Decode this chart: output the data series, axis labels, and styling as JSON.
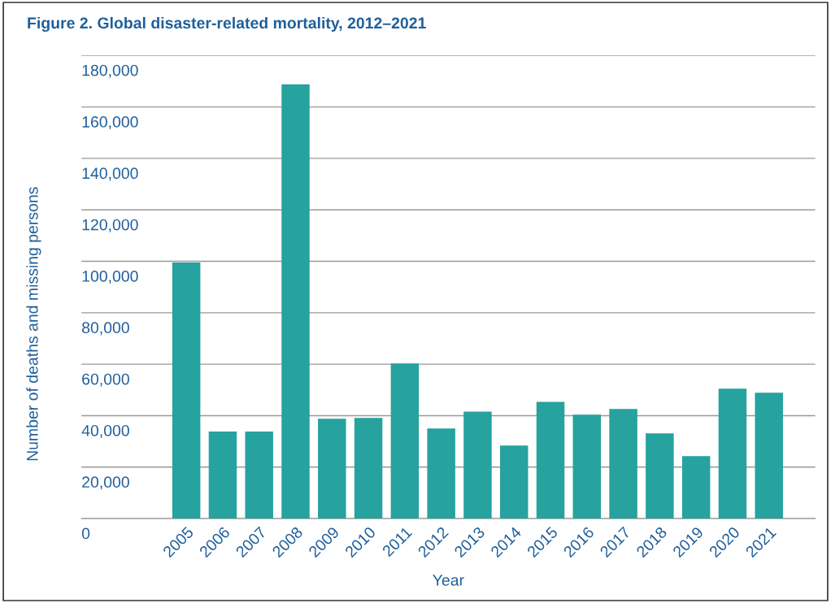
{
  "chart_data": {
    "type": "bar",
    "title": "Figure 2. Global disaster-related mortality, 2012–2021",
    "xlabel": "Year",
    "ylabel": "Number of deaths and missing persons",
    "categories": [
      "2005",
      "2006",
      "2007",
      "2008",
      "2009",
      "2010",
      "2011",
      "2012",
      "2013",
      "2014",
      "2015",
      "2016",
      "2017",
      "2018",
      "2019",
      "2020",
      "2021"
    ],
    "values": [
      99500,
      33800,
      33800,
      168800,
      38800,
      39100,
      60300,
      35000,
      41600,
      28400,
      45400,
      40400,
      42600,
      33100,
      24300,
      50500,
      48900
    ],
    "color": "#26a29f",
    "ylim": [
      0,
      180000
    ],
    "yticks": [
      {
        "value": 0,
        "label": "0"
      },
      {
        "value": 20000,
        "label": "20,000"
      },
      {
        "value": 40000,
        "label": "40,000"
      },
      {
        "value": 60000,
        "label": "60,000"
      },
      {
        "value": 80000,
        "label": "80,000"
      },
      {
        "value": 100000,
        "label": "100,000"
      },
      {
        "value": 120000,
        "label": "120,000"
      },
      {
        "value": 140000,
        "label": "140,000"
      },
      {
        "value": 160000,
        "label": "160,000"
      },
      {
        "value": 180000,
        "label": "180,000"
      }
    ],
    "grid": "y",
    "legend": false
  }
}
